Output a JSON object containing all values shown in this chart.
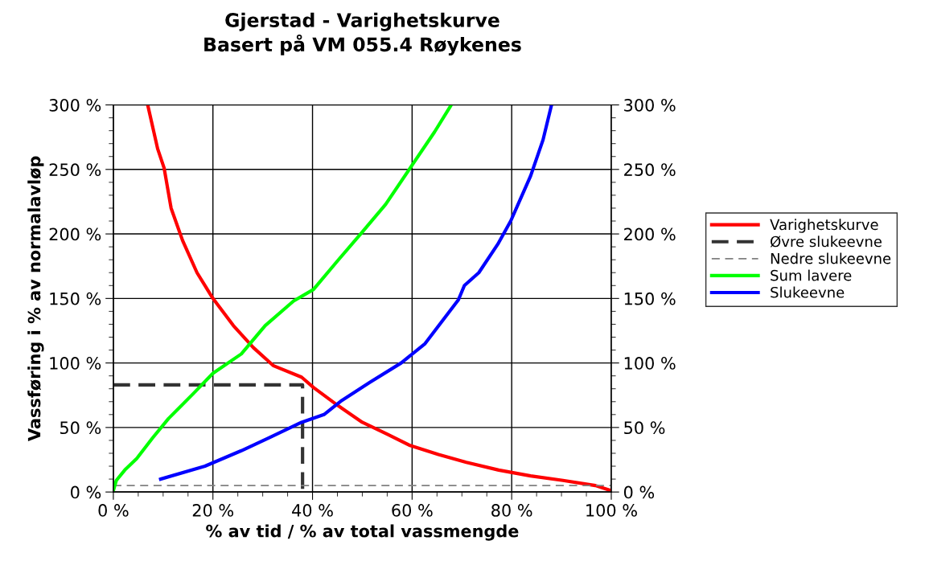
{
  "chart_data": {
    "type": "line",
    "title": "Gjerstad - Varighetskurve\nBasert på VM 055.4 Røykenes",
    "xlabel": "% av tid / % av total vassmengde",
    "ylabel": "Vassføring i % av normalavløp",
    "xlim": [
      0,
      100
    ],
    "ylim": [
      0,
      300
    ],
    "y2lim": [
      0,
      300
    ],
    "xticks": [
      {
        "value": 0,
        "label": "0 %"
      },
      {
        "value": 5,
        "label": null
      },
      {
        "value": 10,
        "label": null
      },
      {
        "value": 15,
        "label": null
      },
      {
        "value": 20,
        "label": "20 %"
      },
      {
        "value": 25,
        "label": null
      },
      {
        "value": 30,
        "label": null
      },
      {
        "value": 35,
        "label": null
      },
      {
        "value": 40,
        "label": "40 %"
      },
      {
        "value": 45,
        "label": null
      },
      {
        "value": 50,
        "label": null
      },
      {
        "value": 55,
        "label": null
      },
      {
        "value": 60,
        "label": "60 %"
      },
      {
        "value": 65,
        "label": null
      },
      {
        "value": 70,
        "label": null
      },
      {
        "value": 75,
        "label": null
      },
      {
        "value": 80,
        "label": "80 %"
      },
      {
        "value": 85,
        "label": null
      },
      {
        "value": 90,
        "label": null
      },
      {
        "value": 95,
        "label": null
      },
      {
        "value": 100,
        "label": "100 %"
      }
    ],
    "yticks": [
      {
        "value": 0,
        "label": "0 %"
      },
      {
        "value": 10,
        "label": null
      },
      {
        "value": 20,
        "label": null
      },
      {
        "value": 30,
        "label": null
      },
      {
        "value": 40,
        "label": null
      },
      {
        "value": 50,
        "label": "50 %"
      },
      {
        "value": 60,
        "label": null
      },
      {
        "value": 70,
        "label": null
      },
      {
        "value": 80,
        "label": null
      },
      {
        "value": 90,
        "label": null
      },
      {
        "value": 100,
        "label": "100 %"
      },
      {
        "value": 110,
        "label": null
      },
      {
        "value": 120,
        "label": null
      },
      {
        "value": 130,
        "label": null
      },
      {
        "value": 140,
        "label": null
      },
      {
        "value": 150,
        "label": "150 %"
      },
      {
        "value": 160,
        "label": null
      },
      {
        "value": 170,
        "label": null
      },
      {
        "value": 180,
        "label": null
      },
      {
        "value": 190,
        "label": null
      },
      {
        "value": 200,
        "label": "200 %"
      },
      {
        "value": 210,
        "label": null
      },
      {
        "value": 220,
        "label": null
      },
      {
        "value": 230,
        "label": null
      },
      {
        "value": 240,
        "label": null
      },
      {
        "value": 250,
        "label": "250 %"
      },
      {
        "value": 260,
        "label": null
      },
      {
        "value": 270,
        "label": null
      },
      {
        "value": 280,
        "label": null
      },
      {
        "value": 290,
        "label": null
      },
      {
        "value": 300,
        "label": "300 %"
      }
    ],
    "y2ticks": [
      {
        "value": 0,
        "label": "0 %"
      },
      {
        "value": 10,
        "label": null
      },
      {
        "value": 20,
        "label": null
      },
      {
        "value": 30,
        "label": null
      },
      {
        "value": 40,
        "label": null
      },
      {
        "value": 50,
        "label": "50 %"
      },
      {
        "value": 60,
        "label": null
      },
      {
        "value": 70,
        "label": null
      },
      {
        "value": 80,
        "label": null
      },
      {
        "value": 90,
        "label": null
      },
      {
        "value": 100,
        "label": "100 %"
      },
      {
        "value": 110,
        "label": null
      },
      {
        "value": 120,
        "label": null
      },
      {
        "value": 130,
        "label": null
      },
      {
        "value": 140,
        "label": null
      },
      {
        "value": 150,
        "label": "150 %"
      },
      {
        "value": 160,
        "label": null
      },
      {
        "value": 170,
        "label": null
      },
      {
        "value": 180,
        "label": null
      },
      {
        "value": 190,
        "label": null
      },
      {
        "value": 200,
        "label": "200 %"
      },
      {
        "value": 210,
        "label": null
      },
      {
        "value": 220,
        "label": null
      },
      {
        "value": 230,
        "label": null
      },
      {
        "value": 240,
        "label": null
      },
      {
        "value": 250,
        "label": "250 %"
      },
      {
        "value": 260,
        "label": null
      },
      {
        "value": 270,
        "label": null
      },
      {
        "value": 280,
        "label": null
      },
      {
        "value": 290,
        "label": null
      },
      {
        "value": 300,
        "label": "300 %"
      }
    ],
    "grid": true,
    "legend": "right",
    "marker": "none",
    "series": [
      {
        "name": "Varighetskurve",
        "color": "#ff0000",
        "line_style": "solid",
        "x": [
          6.9,
          8.9,
          10.2,
          11.6,
          13.9,
          16.8,
          20,
          24.1,
          28.1,
          32.1,
          37.8,
          40.2,
          45.1,
          50,
          54.9,
          59.6,
          65.3,
          70.9,
          77.4,
          83.8,
          90.3,
          96.8,
          100
        ],
        "values": [
          300,
          266,
          251,
          220,
          195,
          170,
          150,
          129,
          112,
          98,
          89,
          81,
          67,
          54,
          45,
          36,
          29,
          23,
          17,
          12.5,
          9,
          5,
          1
        ]
      },
      {
        "name": "Øvre slukeevne",
        "color": "#333333",
        "line_style": "dashed",
        "x": [
          0,
          38,
          38
        ],
        "values": [
          83,
          83,
          0
        ]
      },
      {
        "name": "Nedre slukeevne",
        "color": "#808080",
        "line_style": "dashed",
        "x": [
          0,
          100
        ],
        "values": [
          5,
          5
        ]
      },
      {
        "name": "Sum lavere",
        "color": "#00ff00",
        "line_style": "solid",
        "x": [
          0,
          0.6,
          2.3,
          4.7,
          7.9,
          11.1,
          16,
          20,
          25.7,
          30.5,
          36.2,
          40.2,
          45,
          49.9,
          54.7,
          59.6,
          64.5,
          67.7
        ],
        "values": [
          1,
          9,
          17,
          26,
          42,
          57,
          76,
          92,
          107,
          129,
          148,
          157,
          179,
          201,
          223,
          251,
          279,
          299
        ]
      },
      {
        "name": "Slukeevne",
        "color": "#0000ff",
        "line_style": "solid",
        "x": [
          9.5,
          18.4,
          25.7,
          31.3,
          37.8,
          42.3,
          45.9,
          51.5,
          57.8,
          62.6,
          69.3,
          70.5,
          73.4,
          77.2,
          79.8,
          83.8,
          86.3,
          88
        ],
        "values": [
          10,
          20,
          32,
          42,
          54,
          60,
          71,
          85,
          100,
          115,
          149,
          160,
          170,
          192,
          210,
          245,
          273,
          300
        ]
      }
    ]
  }
}
